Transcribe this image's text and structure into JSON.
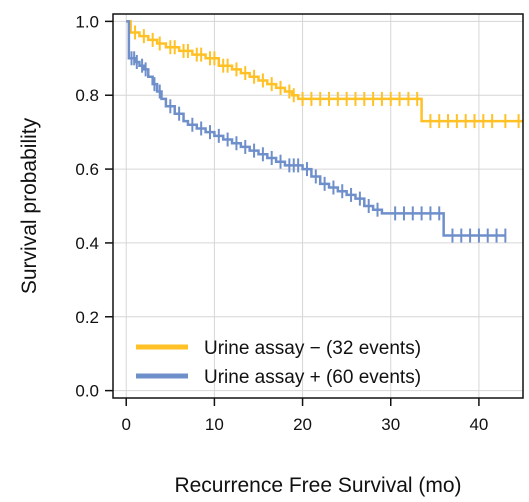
{
  "chart_data": {
    "type": "line",
    "step": true,
    "xlabel": "Recurrence Free Survival (mo)",
    "ylabel": "Survival probability",
    "xlim": [
      -1.5,
      45
    ],
    "ylim": [
      -0.02,
      1.02
    ],
    "xticks": [
      0,
      10,
      20,
      30,
      40
    ],
    "yticks": [
      0.0,
      0.2,
      0.4,
      0.6,
      0.8,
      1.0
    ],
    "xtick_labels": [
      "0",
      "10",
      "20",
      "30",
      "40"
    ],
    "ytick_labels": [
      "0.0",
      "0.2",
      "0.4",
      "0.6",
      "0.8",
      "1.0"
    ],
    "grid": true,
    "legend_position": "bottom-right",
    "series": [
      {
        "name": "Urine assay − (32 events)",
        "color": "#FFC125",
        "points": [
          [
            0,
            1.0
          ],
          [
            0.5,
            0.97
          ],
          [
            1.5,
            0.96
          ],
          [
            2.5,
            0.95
          ],
          [
            3.5,
            0.94
          ],
          [
            4.5,
            0.93
          ],
          [
            6,
            0.92
          ],
          [
            7.5,
            0.91
          ],
          [
            9,
            0.9
          ],
          [
            10.5,
            0.88
          ],
          [
            12,
            0.87
          ],
          [
            13,
            0.86
          ],
          [
            14,
            0.85
          ],
          [
            15,
            0.84
          ],
          [
            16,
            0.83
          ],
          [
            17,
            0.82
          ],
          [
            18,
            0.81
          ],
          [
            18.8,
            0.8
          ],
          [
            19.5,
            0.79
          ],
          [
            33.5,
            0.73
          ],
          [
            45,
            0.73
          ]
        ],
        "censors": [
          [
            1,
            0.97
          ],
          [
            2,
            0.96
          ],
          [
            3,
            0.95
          ],
          [
            3.8,
            0.94
          ],
          [
            5,
            0.93
          ],
          [
            5.5,
            0.93
          ],
          [
            6.5,
            0.92
          ],
          [
            7,
            0.92
          ],
          [
            8,
            0.91
          ],
          [
            8.5,
            0.91
          ],
          [
            9.5,
            0.9
          ],
          [
            10,
            0.9
          ],
          [
            11,
            0.88
          ],
          [
            11.5,
            0.88
          ],
          [
            12.5,
            0.87
          ],
          [
            13.5,
            0.86
          ],
          [
            14.5,
            0.85
          ],
          [
            15.5,
            0.84
          ],
          [
            16.5,
            0.83
          ],
          [
            17.5,
            0.82
          ],
          [
            18.5,
            0.81
          ],
          [
            19,
            0.8
          ],
          [
            20,
            0.79
          ],
          [
            21,
            0.79
          ],
          [
            22,
            0.79
          ],
          [
            23,
            0.79
          ],
          [
            24,
            0.79
          ],
          [
            25,
            0.79
          ],
          [
            26,
            0.79
          ],
          [
            27,
            0.79
          ],
          [
            28,
            0.79
          ],
          [
            29,
            0.79
          ],
          [
            30,
            0.79
          ],
          [
            31,
            0.79
          ],
          [
            32,
            0.79
          ],
          [
            33,
            0.79
          ],
          [
            34.5,
            0.73
          ],
          [
            35.5,
            0.73
          ],
          [
            36.5,
            0.73
          ],
          [
            37.5,
            0.73
          ],
          [
            38.5,
            0.73
          ],
          [
            39.5,
            0.73
          ],
          [
            40.5,
            0.73
          ],
          [
            41.5,
            0.73
          ],
          [
            43,
            0.73
          ],
          [
            44.5,
            0.73
          ]
        ]
      },
      {
        "name": "Urine assay + (60 events)",
        "color": "#6F8FCB",
        "points": [
          [
            0,
            1.0
          ],
          [
            0.3,
            0.9
          ],
          [
            1,
            0.89
          ],
          [
            1.5,
            0.88
          ],
          [
            2,
            0.87
          ],
          [
            2.5,
            0.85
          ],
          [
            3,
            0.83
          ],
          [
            3.5,
            0.81
          ],
          [
            4,
            0.79
          ],
          [
            4.5,
            0.77
          ],
          [
            5.5,
            0.75
          ],
          [
            6.5,
            0.73
          ],
          [
            7,
            0.72
          ],
          [
            8,
            0.71
          ],
          [
            9,
            0.7
          ],
          [
            10,
            0.69
          ],
          [
            11,
            0.68
          ],
          [
            12,
            0.67
          ],
          [
            13,
            0.66
          ],
          [
            14,
            0.65
          ],
          [
            15,
            0.64
          ],
          [
            16,
            0.63
          ],
          [
            17,
            0.62
          ],
          [
            18,
            0.61
          ],
          [
            20,
            0.6
          ],
          [
            21,
            0.58
          ],
          [
            22,
            0.56
          ],
          [
            23,
            0.55
          ],
          [
            24,
            0.54
          ],
          [
            25,
            0.53
          ],
          [
            26,
            0.52
          ],
          [
            27,
            0.5
          ],
          [
            28,
            0.49
          ],
          [
            29,
            0.48
          ],
          [
            30,
            0.48
          ],
          [
            36,
            0.42
          ],
          [
            43,
            0.42
          ]
        ],
        "censors": [
          [
            0.6,
            0.9
          ],
          [
            0.9,
            0.9
          ],
          [
            1.2,
            0.89
          ],
          [
            1.8,
            0.88
          ],
          [
            2.2,
            0.87
          ],
          [
            3.2,
            0.83
          ],
          [
            3.8,
            0.81
          ],
          [
            5,
            0.77
          ],
          [
            6,
            0.75
          ],
          [
            7.5,
            0.72
          ],
          [
            8.5,
            0.71
          ],
          [
            9.5,
            0.7
          ],
          [
            10.5,
            0.69
          ],
          [
            11.5,
            0.68
          ],
          [
            12.5,
            0.67
          ],
          [
            13.5,
            0.66
          ],
          [
            14.5,
            0.65
          ],
          [
            15.5,
            0.64
          ],
          [
            16.5,
            0.63
          ],
          [
            17.5,
            0.62
          ],
          [
            18.5,
            0.61
          ],
          [
            19,
            0.61
          ],
          [
            19.5,
            0.61
          ],
          [
            20.5,
            0.6
          ],
          [
            21.5,
            0.58
          ],
          [
            22.5,
            0.56
          ],
          [
            23.5,
            0.55
          ],
          [
            24.5,
            0.54
          ],
          [
            25.5,
            0.53
          ],
          [
            26.5,
            0.52
          ],
          [
            27.5,
            0.5
          ],
          [
            28.5,
            0.49
          ],
          [
            30.5,
            0.48
          ],
          [
            31.5,
            0.48
          ],
          [
            32.5,
            0.48
          ],
          [
            33.5,
            0.48
          ],
          [
            34.5,
            0.48
          ],
          [
            35.5,
            0.48
          ],
          [
            37,
            0.42
          ],
          [
            38,
            0.42
          ],
          [
            39,
            0.42
          ],
          [
            40,
            0.42
          ],
          [
            41,
            0.42
          ],
          [
            42,
            0.42
          ],
          [
            43,
            0.42
          ]
        ]
      }
    ]
  }
}
